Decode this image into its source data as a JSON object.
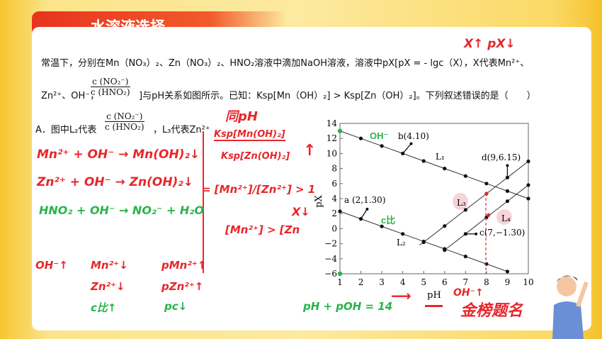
{
  "header": {
    "title": "水溶液选择"
  },
  "question": {
    "line1": "常温下，分别在Mn（NO₃）₂、Zn（NO₃）₂、HNO₂溶液中滴加NaOH溶液，溶液中pX[pX = - lgc（X），X代表Mn²⁺、",
    "line2_a": "Zn²⁺、OH⁻，",
    "frac_num": "c (NO₂⁻)",
    "frac_den": "c (HNO₂)",
    "line2_b": "]与pH关系如图所示。已知：Ksp[Mn（OH）₂] > Ksp[Zn（OH）₂]。下列叙述错误的是（　　）",
    "optionA_a": "A．图中L₂代表",
    "optionA_b": "，L₃代表Zn²⁺"
  },
  "annotations": {
    "top_right": "X↑ pX↓",
    "same_ph": "同pH",
    "ksp_num": "Ksp[Mn(OH)₂]",
    "ksp_den": "Ksp[Zn(OH)₂]",
    "ratio": "= [Mn²⁺]/[Zn²⁺] > 1",
    "compare": "[Mn²⁺] > [Zn",
    "x_down": "X↓",
    "eq1": "Mn²⁺ + OH⁻ → Mn(OH)₂↓",
    "eq2": "Zn²⁺ + OH⁻ → Zn(OH)₂↓",
    "eq3": "HNO₂ + OH⁻ → NO₂⁻ + H₂O",
    "oh_up": "OH⁻↑",
    "mn_down": "Mn²⁺↓",
    "zn_down": "Zn²⁺↓",
    "cht_up": "c比↑",
    "pmn_up": "pMn²⁺↑",
    "pzn_up": "pZn²⁺↑",
    "pc_down": "pc↓",
    "ph_sum": "pH + pOH = 14",
    "oh_up2": "OH⁻↑",
    "chart_oh": "OH⁻",
    "chart_cb": "c比",
    "colors": {
      "red": "#e8262a",
      "green": "#27b44a"
    }
  },
  "logo": {
    "text": "金榜题名"
  },
  "chart_data": {
    "type": "line",
    "xlabel": "pH",
    "ylabel": "pX",
    "xlim": [
      1,
      10
    ],
    "ylim": [
      -6,
      14
    ],
    "xticks": [
      "1",
      "2",
      "3",
      "4",
      "5",
      "6",
      "7",
      "8",
      "9",
      "10"
    ],
    "yticks": [
      "−6",
      "−4",
      "−2",
      "0",
      "2",
      "4",
      "6",
      "8",
      "10",
      "12",
      "14"
    ],
    "grid": false,
    "series": [
      {
        "name": "L₁",
        "x": [
          1,
          2,
          3,
          4,
          5,
          6,
          7,
          8,
          9,
          10
        ],
        "y": [
          13,
          12,
          11,
          10,
          9,
          8,
          7,
          6,
          5,
          4
        ]
      },
      {
        "name": "L₂",
        "x": [
          1,
          2,
          3,
          4,
          5,
          6,
          7,
          8,
          9
        ],
        "y": [
          2.3,
          1.3,
          0.3,
          -0.7,
          -1.7,
          -2.7,
          -3.7,
          -4.7,
          -5.7
        ]
      },
      {
        "name": "L₃",
        "x": [
          4.8,
          5,
          6,
          7,
          8,
          9,
          10
        ],
        "y": [
          -2.2,
          -1.8,
          0.35,
          2.5,
          4.65,
          6.8,
          8.95
        ]
      },
      {
        "name": "L₄",
        "x": [
          6,
          7,
          8,
          9,
          10
        ],
        "y": [
          -2.85,
          -0.7,
          1.5,
          3.65,
          5.8
        ]
      }
    ],
    "annotations": [
      "b(4.10)",
      "a (2,1.30)",
      "d(9,6.15)",
      "c(7,−1.30)"
    ]
  }
}
